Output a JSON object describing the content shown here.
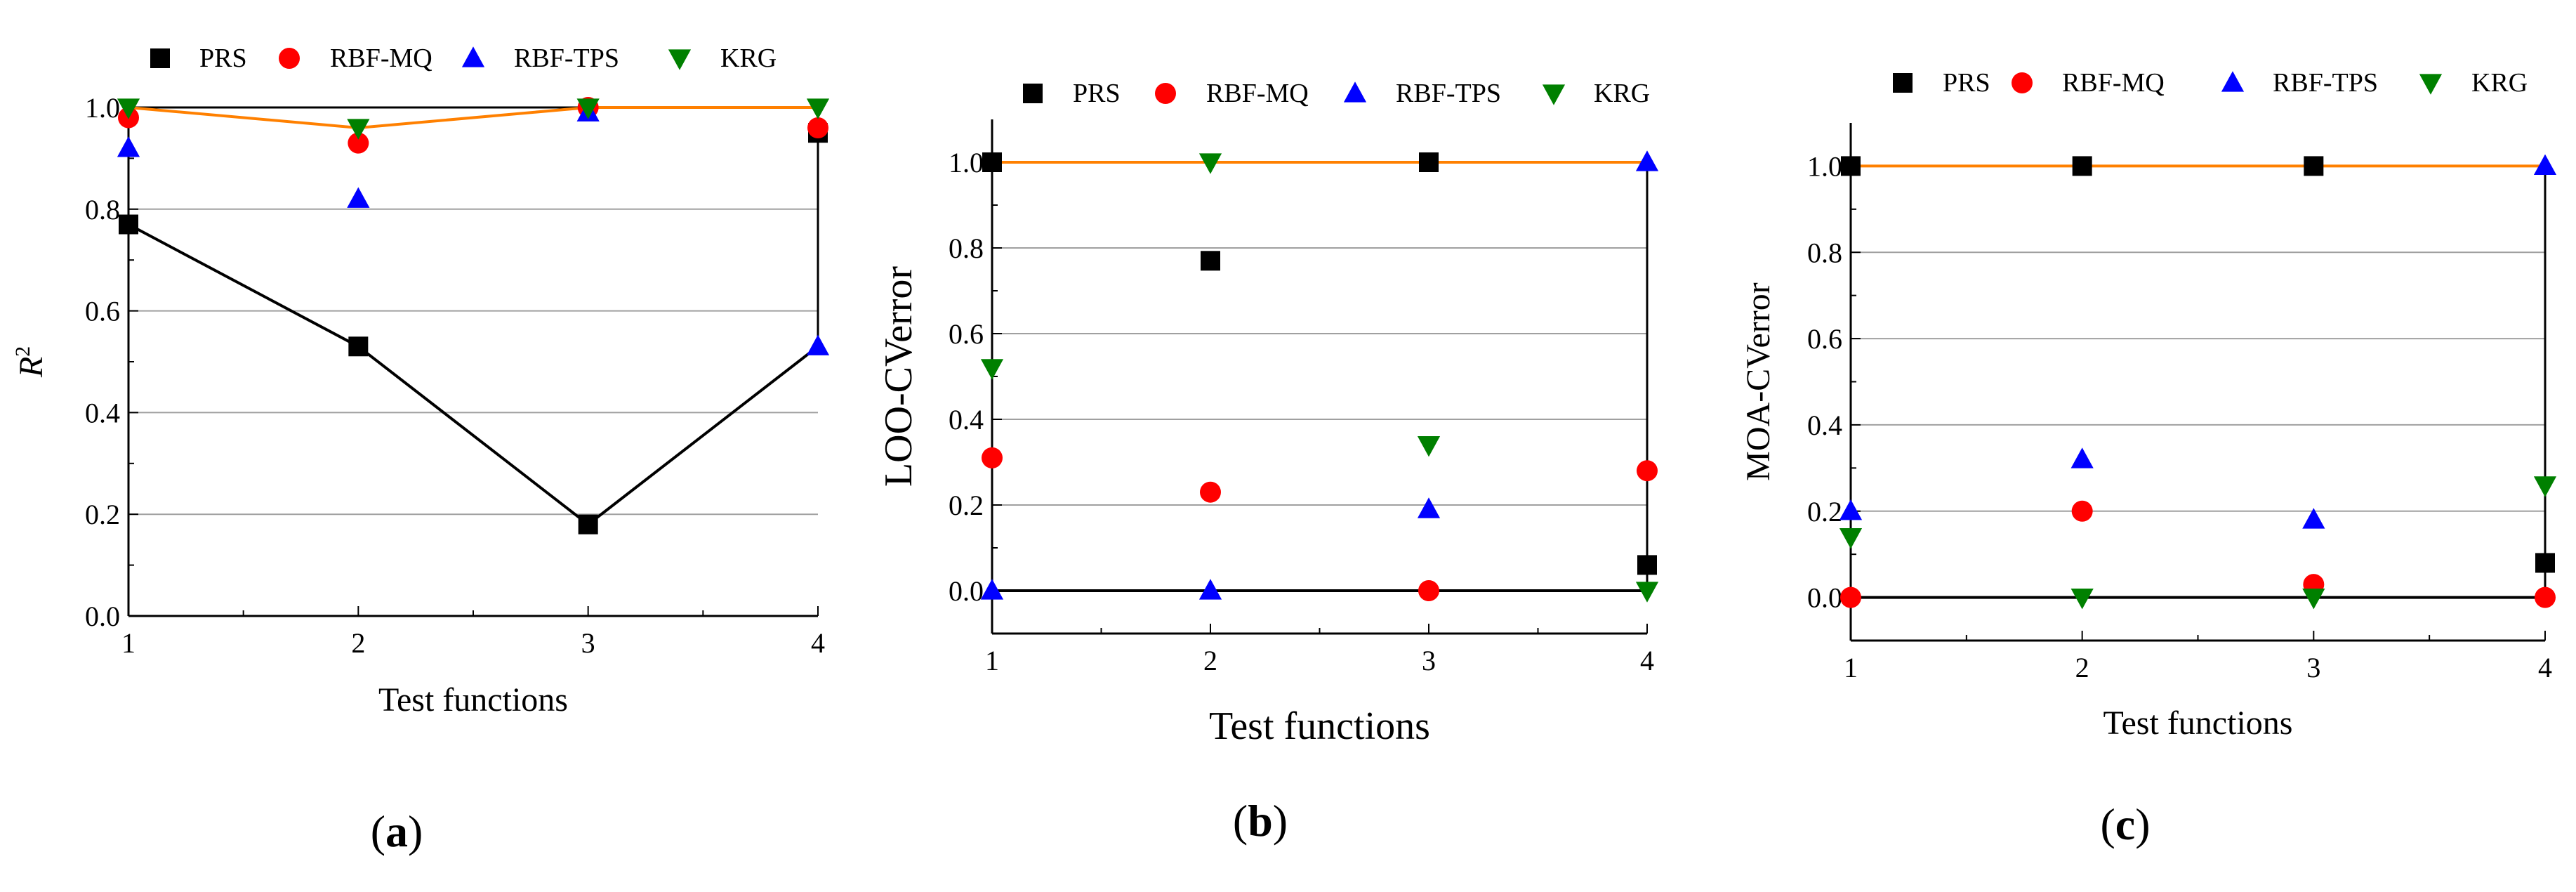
{
  "chart_data": [
    {
      "id": "a",
      "type": "scatter",
      "panel_label": "(a)",
      "panel_letter": "a",
      "xlabel": "Test functions",
      "ylabel": "R",
      "ylabel_sup": "2",
      "x": [
        1,
        2,
        3,
        4
      ],
      "xlim": [
        1,
        4
      ],
      "ylim": [
        0,
        1.0
      ],
      "yticks": [
        "0.0",
        "0.2",
        "0.4",
        "0.6",
        "0.8",
        "1.0"
      ],
      "xticks": [
        "1",
        "2",
        "3",
        "4"
      ],
      "grid": true,
      "series": [
        {
          "name": "PRS",
          "marker": "square",
          "color": "#000000",
          "values": [
            0.77,
            0.53,
            0.18,
            0.95
          ]
        },
        {
          "name": "RBF-MQ",
          "marker": "circle",
          "color": "#ff0000",
          "values": [
            0.98,
            0.93,
            1.0,
            0.96
          ]
        },
        {
          "name": "RBF-TPS",
          "marker": "triangle-up",
          "color": "#0000ff",
          "values": [
            0.92,
            0.82,
            0.99,
            0.53
          ]
        },
        {
          "name": "KRG",
          "marker": "triangle-down",
          "color": "#008000",
          "values": [
            1.0,
            0.96,
            1.0,
            1.0
          ]
        }
      ],
      "lines": [
        {
          "name": "upper-envelope",
          "color": "#ff8000",
          "values": [
            1.0,
            0.96,
            1.0,
            1.0
          ]
        },
        {
          "name": "lower-envelope",
          "color": "#000000",
          "values": [
            0.77,
            0.53,
            0.18,
            0.53
          ]
        }
      ]
    },
    {
      "id": "b",
      "type": "scatter",
      "panel_label": "(b)",
      "panel_letter": "b",
      "xlabel": "Test functions",
      "ylabel": "LOO-CVerror",
      "x": [
        1,
        2,
        3,
        4
      ],
      "xlim": [
        1,
        4
      ],
      "ylim": [
        -0.1,
        1.1
      ],
      "yticks": [
        "0.0",
        "0.2",
        "0.4",
        "0.6",
        "0.8",
        "1.0"
      ],
      "xticks": [
        "1",
        "2",
        "3",
        "4"
      ],
      "grid": true,
      "series": [
        {
          "name": "PRS",
          "marker": "square",
          "color": "#000000",
          "values": [
            1.0,
            0.77,
            1.0,
            0.06
          ]
        },
        {
          "name": "RBF-MQ",
          "marker": "circle",
          "color": "#ff0000",
          "values": [
            0.31,
            0.23,
            0.0,
            0.28
          ]
        },
        {
          "name": "RBF-TPS",
          "marker": "triangle-up",
          "color": "#0000ff",
          "values": [
            0.0,
            0.0,
            0.19,
            1.0
          ]
        },
        {
          "name": "KRG",
          "marker": "triangle-down",
          "color": "#008000",
          "values": [
            0.52,
            1.0,
            0.34,
            0.0
          ]
        }
      ],
      "lines": [
        {
          "name": "upper-envelope",
          "color": "#ff8000",
          "values": [
            1.0,
            1.0,
            1.0,
            1.0
          ]
        },
        {
          "name": "lower-envelope",
          "color": "#000000",
          "values": [
            0.0,
            0.0,
            0.0,
            0.0
          ]
        }
      ]
    },
    {
      "id": "c",
      "type": "scatter",
      "panel_label": "(c)",
      "panel_letter": "c",
      "xlabel": "Test functions",
      "ylabel": "MOA-CVerror",
      "x": [
        1,
        2,
        3,
        4
      ],
      "xlim": [
        1,
        4
      ],
      "ylim": [
        -0.1,
        1.1
      ],
      "yticks": [
        "0.0",
        "0.2",
        "0.4",
        "0.6",
        "0.8",
        "1.0"
      ],
      "xticks": [
        "1",
        "2",
        "3",
        "4"
      ],
      "grid": true,
      "series": [
        {
          "name": "PRS",
          "marker": "square",
          "color": "#000000",
          "values": [
            1.0,
            1.0,
            1.0,
            0.08
          ]
        },
        {
          "name": "RBF-MQ",
          "marker": "circle",
          "color": "#ff0000",
          "values": [
            0.0,
            0.2,
            0.03,
            0.0
          ]
        },
        {
          "name": "RBF-TPS",
          "marker": "triangle-up",
          "color": "#0000ff",
          "values": [
            0.2,
            0.32,
            0.18,
            1.0
          ]
        },
        {
          "name": "KRG",
          "marker": "triangle-down",
          "color": "#008000",
          "values": [
            0.14,
            0.0,
            0.0,
            0.26
          ]
        }
      ],
      "lines": [
        {
          "name": "upper-envelope",
          "color": "#ff8000",
          "values": [
            1.0,
            1.0,
            1.0,
            1.0
          ]
        },
        {
          "name": "lower-envelope",
          "color": "#000000",
          "values": [
            0.0,
            0.0,
            0.0,
            0.0
          ]
        }
      ]
    }
  ]
}
